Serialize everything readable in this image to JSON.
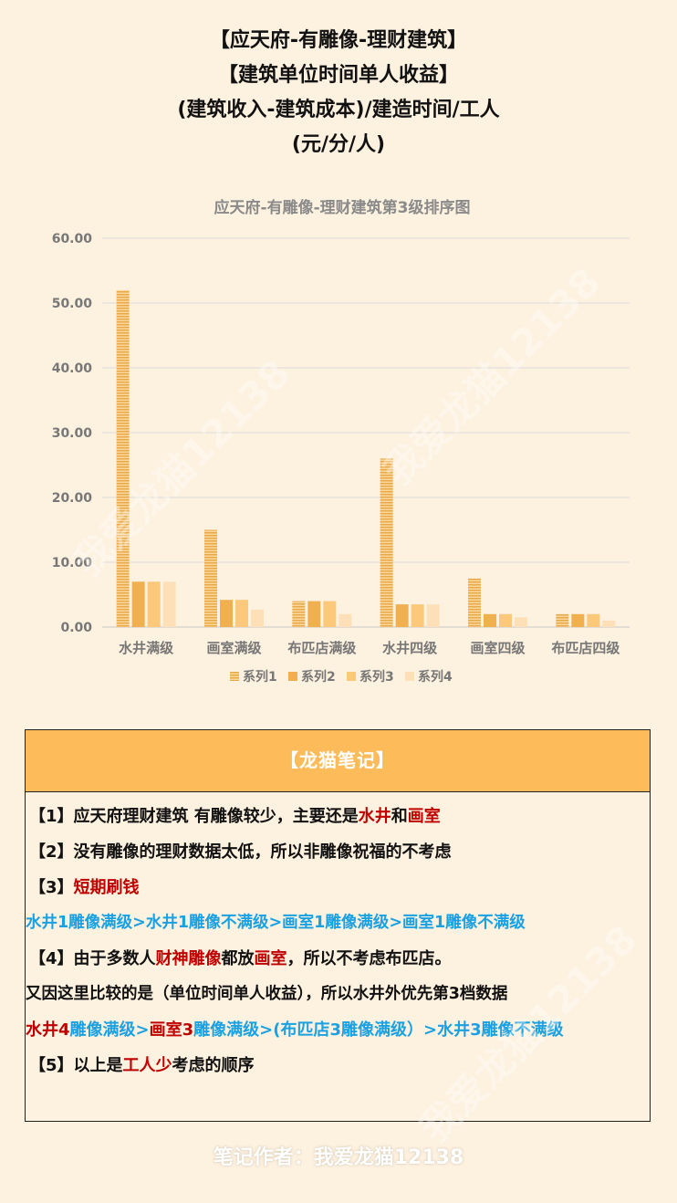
{
  "titles": [
    "【应天府-有雕像-理财建筑】",
    "【建筑单位时间单人收益】",
    "(建筑收入-建筑成本)/建造时间/工人",
    "(元/分/人)"
  ],
  "chart_data": {
    "type": "bar",
    "title": "应天府-有雕像-理财建筑第3级排序图",
    "categories": [
      "水井满级",
      "画室满级",
      "布匹店满级",
      "水井四级",
      "画室四级",
      "布匹店四级"
    ],
    "series": [
      {
        "name": "系列1",
        "values": [
          52,
          15,
          4,
          26,
          7.5,
          2
        ],
        "color": "#f5b04f"
      },
      {
        "name": "系列2",
        "values": [
          7,
          4.2,
          4,
          3.5,
          2,
          2
        ],
        "color": "#f0b050"
      },
      {
        "name": "系列3",
        "values": [
          7,
          4.2,
          4,
          3.5,
          2,
          2
        ],
        "color": "#fcc97a"
      },
      {
        "name": "系列4",
        "values": [
          7,
          2.7,
          2,
          3.5,
          1.5,
          1
        ],
        "color": "#fde0b8"
      }
    ],
    "ylim": [
      0,
      60
    ],
    "yticks": [
      "0.00",
      "10.00",
      "20.00",
      "30.00",
      "40.00",
      "50.00",
      "60.00"
    ],
    "grid": true,
    "legend": "bottom"
  },
  "notes": {
    "header": "【龙猫笔记】",
    "l1": {
      "a": "【1】应天府理财建筑 有雕像较少，主要还是",
      "b": "水井",
      "c": "和",
      "d": "画室"
    },
    "l2": "【2】没有雕像的理财数据太低，所以非雕像祝福的不考虑",
    "l3": {
      "a": "【3】",
      "b": "短期刷钱"
    },
    "l4": "水井1雕像满级>水井1雕像不满级>画室1雕像满级>画室1雕像不满级",
    "l5": {
      "a": "【4】由于多数人",
      "b": "财神雕像",
      "c": "都放",
      "d": "画室",
      "e": "，所以不考虑布匹店。"
    },
    "l6": "又因这里比较的是（单位时间单人收益），所以水井外优先第3档数据",
    "l7": {
      "a": "水井4",
      "b": "雕像满级>",
      "c": "画室3",
      "d": "雕像满级>(布匹店3雕像满级）>水井3雕像不满级"
    },
    "l8": {
      "a": "【5】以上是",
      "b": "工人少",
      "c": "考虑的顺序"
    }
  },
  "footer": "笔记作者：我爱龙猫12138",
  "watermark": "我爱龙猫12138"
}
